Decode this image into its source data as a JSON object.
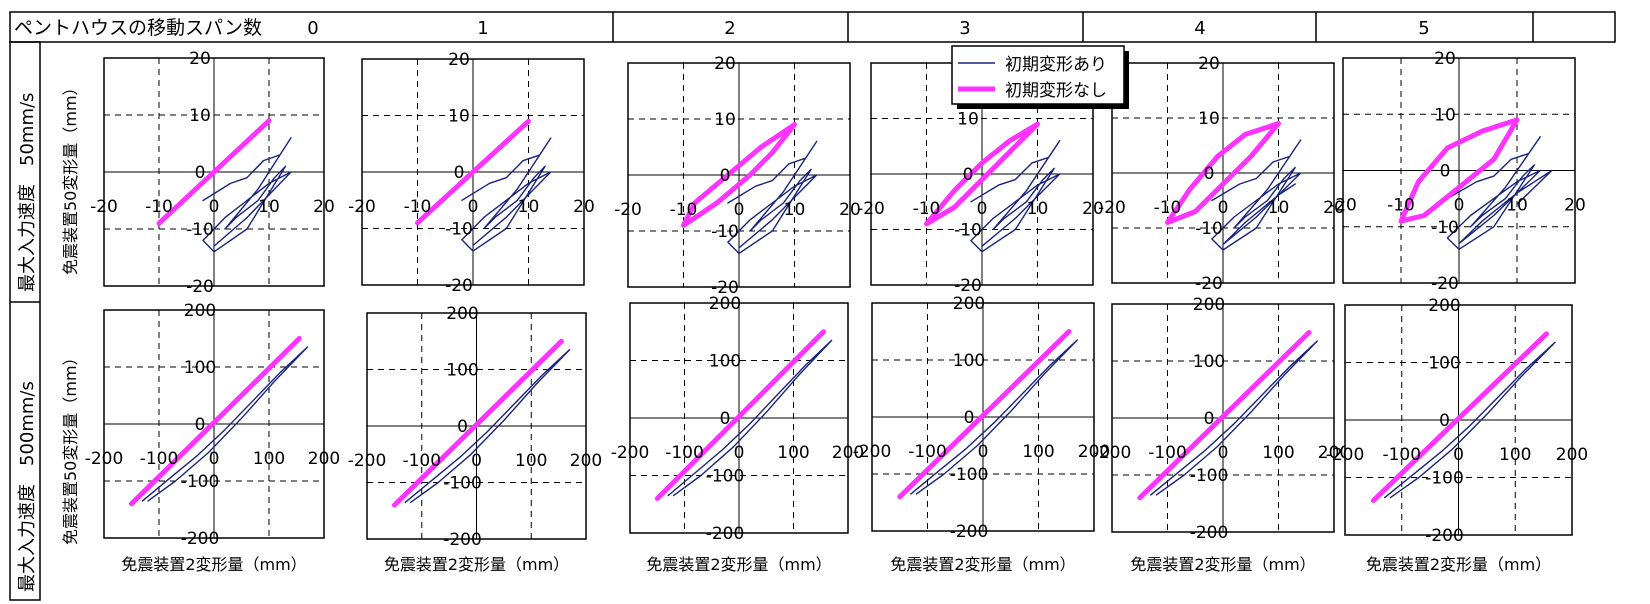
{
  "header": {
    "label": "ペントハウスの移動スパン数",
    "columns": [
      "0",
      "1",
      "2",
      "3",
      "4",
      "5"
    ]
  },
  "row_labels": [
    "最大入力速度　50mm/s",
    "最大入力速度　500mm/s"
  ],
  "y_axis_label": "免震装置50変形量（mm）",
  "x_axis_label": "免震装置2変形量（mm）",
  "legend": {
    "items": [
      {
        "label": "初期変形あり",
        "color": "#1a237e"
      },
      {
        "label": "初期変形なし",
        "color": "#ff33ff"
      }
    ]
  },
  "colors": {
    "series_with_initial": "#1a237e",
    "series_without_initial": "#ff33ff",
    "grid": "#000000"
  },
  "chart_data": [
    {
      "type": "line",
      "row": "最大入力速度　50mm/s",
      "column": "0",
      "xlim": [
        -20,
        20
      ],
      "ylim": [
        -20,
        20
      ],
      "xticks": [
        -20,
        -10,
        0,
        10,
        20
      ],
      "yticks": [
        -20,
        -10,
        0,
        10,
        20
      ],
      "series": [
        {
          "name": "初期変形あり",
          "x": [
            -2,
            3,
            6,
            9,
            12,
            14,
            8,
            2,
            4,
            8,
            11,
            13,
            6,
            0,
            -2,
            2,
            6,
            10,
            14,
            6,
            0
          ],
          "y": [
            -5,
            -2,
            -1,
            2,
            3,
            6,
            -3,
            -10,
            -8,
            -5,
            -1,
            1,
            -10,
            -14,
            -12,
            -8,
            -5,
            -2,
            0,
            -8,
            -13
          ]
        },
        {
          "name": "初期変形なし",
          "x": [
            -10,
            10
          ],
          "y": [
            -9,
            9
          ]
        }
      ]
    },
    {
      "type": "line",
      "row": "最大入力速度　50mm/s",
      "column": "1",
      "xlim": [
        -20,
        20
      ],
      "ylim": [
        -20,
        20
      ],
      "xticks": [
        -20,
        -10,
        0,
        10,
        20
      ],
      "yticks": [
        -20,
        -10,
        0,
        10,
        20
      ],
      "series": [
        {
          "name": "初期変形あり",
          "x": [
            -2,
            3,
            6,
            9,
            12,
            14,
            8,
            2,
            4,
            8,
            11,
            13,
            6,
            0,
            -2,
            2,
            6,
            10,
            14,
            6,
            0
          ],
          "y": [
            -5,
            -2,
            -1,
            2,
            3,
            6,
            -3,
            -10,
            -8,
            -5,
            -1,
            1,
            -10,
            -14,
            -12,
            -8,
            -5,
            -2,
            0,
            -8,
            -13
          ]
        },
        {
          "name": "初期変形なし",
          "x": [
            -10,
            10
          ],
          "y": [
            -9,
            9
          ]
        }
      ]
    },
    {
      "type": "line",
      "row": "最大入力速度　50mm/s",
      "column": "2",
      "xlim": [
        -20,
        20
      ],
      "ylim": [
        -20,
        20
      ],
      "xticks": [
        -20,
        -10,
        0,
        10,
        20
      ],
      "yticks": [
        -20,
        -10,
        0,
        10,
        20
      ],
      "series": [
        {
          "name": "初期変形あり",
          "x": [
            -2,
            3,
            6,
            9,
            12,
            14,
            8,
            2,
            4,
            8,
            11,
            13,
            6,
            0,
            -2,
            2,
            6,
            10,
            14,
            6,
            0
          ],
          "y": [
            -5,
            -2,
            -1,
            2,
            3,
            6,
            -3,
            -10,
            -8,
            -5,
            -1,
            1,
            -10,
            -14,
            -12,
            -8,
            -5,
            -2,
            0,
            -8,
            -13
          ]
        },
        {
          "name": "初期変形なし",
          "x": [
            -10,
            -4,
            2,
            6,
            10,
            4,
            -2,
            -8,
            -10
          ],
          "y": [
            -9,
            -5,
            0,
            4,
            9,
            5,
            0,
            -5,
            -9
          ]
        }
      ]
    },
    {
      "type": "line",
      "row": "最大入力速度　50mm/s",
      "column": "3",
      "xlim": [
        -20,
        20
      ],
      "ylim": [
        -20,
        20
      ],
      "xticks": [
        -20,
        -10,
        0,
        10,
        20
      ],
      "yticks": [
        -20,
        -10,
        0,
        10,
        20
      ],
      "series": [
        {
          "name": "初期変形あり",
          "x": [
            -2,
            3,
            6,
            9,
            12,
            14,
            8,
            2,
            4,
            8,
            11,
            13,
            6,
            0,
            -2,
            2,
            6,
            10,
            14,
            6,
            0
          ],
          "y": [
            -5,
            -2,
            -1,
            2,
            3,
            6,
            -3,
            -10,
            -8,
            -5,
            -1,
            1,
            -10,
            -14,
            -12,
            -8,
            -5,
            -2,
            0,
            -8,
            -13
          ]
        },
        {
          "name": "初期変形なし",
          "x": [
            -10,
            -5,
            0,
            5,
            10,
            5,
            0,
            -5,
            -10
          ],
          "y": [
            -9,
            -3,
            2,
            6,
            9,
            4,
            -1,
            -6,
            -9
          ]
        }
      ]
    },
    {
      "type": "line",
      "row": "最大入力速度　50mm/s",
      "column": "4",
      "xlim": [
        -20,
        20
      ],
      "ylim": [
        -20,
        20
      ],
      "xticks": [
        -20,
        -10,
        0,
        10,
        20
      ],
      "yticks": [
        -20,
        -10,
        0,
        10,
        20
      ],
      "series": [
        {
          "name": "初期変形あり",
          "x": [
            -2,
            3,
            6,
            9,
            12,
            14,
            8,
            2,
            4,
            8,
            11,
            13,
            6,
            0,
            -2,
            2,
            6,
            10,
            14,
            6,
            0,
            4,
            10,
            13
          ],
          "y": [
            -5,
            -2,
            -1,
            2,
            3,
            6,
            -3,
            -10,
            -8,
            -5,
            -1,
            1,
            -10,
            -14,
            -12,
            -8,
            -5,
            -2,
            0,
            -8,
            -13,
            -9,
            -4,
            -2
          ]
        },
        {
          "name": "初期変形なし",
          "x": [
            -10,
            -6,
            -1,
            4,
            10,
            5,
            0,
            -5,
            -10
          ],
          "y": [
            -9,
            -3,
            3,
            7,
            9,
            3,
            -2,
            -7,
            -9
          ]
        }
      ]
    },
    {
      "type": "line",
      "row": "最大入力速度　50mm/s",
      "column": "5",
      "xlim": [
        -20,
        20
      ],
      "ylim": [
        -20,
        20
      ],
      "xticks": [
        -20,
        -10,
        0,
        10,
        20
      ],
      "yticks": [
        -20,
        -10,
        0,
        10,
        20
      ],
      "series": [
        {
          "name": "初期変形あり",
          "x": [
            -2,
            3,
            6,
            9,
            12,
            14,
            8,
            2,
            4,
            8,
            11,
            13,
            6,
            0,
            -2,
            2,
            6,
            10,
            14,
            6,
            0,
            4,
            10,
            13,
            16,
            10
          ],
          "y": [
            -5,
            -2,
            -1,
            2,
            3,
            6,
            -3,
            -10,
            -8,
            -5,
            -1,
            1,
            -10,
            -14,
            -12,
            -8,
            -5,
            -2,
            0,
            -8,
            -13,
            -9,
            -4,
            -2,
            0,
            -6
          ]
        },
        {
          "name": "初期変形なし",
          "x": [
            -10,
            -7,
            -2,
            4,
            10,
            6,
            0,
            -6,
            -10
          ],
          "y": [
            -9,
            -2,
            4,
            7,
            9,
            2,
            -3,
            -8,
            -9
          ]
        }
      ]
    },
    {
      "type": "line",
      "row": "最大入力速度　500mm/s",
      "column": "0",
      "xlim": [
        -200,
        200
      ],
      "ylim": [
        -200,
        200
      ],
      "xticks": [
        -200,
        -100,
        0,
        100,
        200
      ],
      "yticks": [
        -200,
        -100,
        0,
        100,
        200
      ],
      "series": [
        {
          "name": "初期変形あり",
          "x": [
            -130,
            -80,
            -30,
            20,
            70,
            120,
            170,
            110,
            50,
            -10,
            -70,
            -120
          ],
          "y": [
            -135,
            -95,
            -55,
            -10,
            40,
            90,
            135,
            75,
            10,
            -50,
            -100,
            -135
          ]
        },
        {
          "name": "初期変形なし",
          "x": [
            -150,
            155
          ],
          "y": [
            -140,
            150
          ]
        }
      ]
    },
    {
      "type": "line",
      "row": "最大入力速度　500mm/s",
      "column": "1",
      "xlim": [
        -200,
        200
      ],
      "ylim": [
        -200,
        200
      ],
      "xticks": [
        -200,
        -100,
        0,
        100,
        200
      ],
      "yticks": [
        -200,
        -100,
        0,
        100,
        200
      ],
      "series": [
        {
          "name": "初期変形あり",
          "x": [
            -130,
            -80,
            -30,
            20,
            70,
            120,
            170,
            110,
            50,
            -10,
            -70,
            -120
          ],
          "y": [
            -135,
            -95,
            -55,
            -10,
            40,
            90,
            135,
            75,
            10,
            -50,
            -100,
            -135
          ]
        },
        {
          "name": "初期変形なし",
          "x": [
            -150,
            155
          ],
          "y": [
            -140,
            150
          ]
        }
      ]
    },
    {
      "type": "line",
      "row": "最大入力速度　500mm/s",
      "column": "2",
      "xlim": [
        -200,
        200
      ],
      "ylim": [
        -200,
        200
      ],
      "xticks": [
        -200,
        -100,
        0,
        100,
        200
      ],
      "yticks": [
        -200,
        -100,
        0,
        100,
        200
      ],
      "series": [
        {
          "name": "初期変形あり",
          "x": [
            -130,
            -80,
            -30,
            20,
            70,
            120,
            170,
            110,
            50,
            -10,
            -70,
            -120
          ],
          "y": [
            -135,
            -95,
            -55,
            -10,
            40,
            90,
            135,
            75,
            10,
            -50,
            -100,
            -135
          ]
        },
        {
          "name": "初期変形なし",
          "x": [
            -150,
            155
          ],
          "y": [
            -140,
            150
          ]
        }
      ]
    },
    {
      "type": "line",
      "row": "最大入力速度　500mm/s",
      "column": "3",
      "xlim": [
        -200,
        200
      ],
      "ylim": [
        -200,
        200
      ],
      "xticks": [
        -200,
        -100,
        0,
        100,
        200
      ],
      "yticks": [
        -200,
        -100,
        0,
        100,
        200
      ],
      "series": [
        {
          "name": "初期変形あり",
          "x": [
            -130,
            -80,
            -30,
            20,
            70,
            120,
            170,
            110,
            50,
            -10,
            -70,
            -120
          ],
          "y": [
            -135,
            -95,
            -55,
            -10,
            40,
            90,
            135,
            75,
            10,
            -50,
            -100,
            -135
          ]
        },
        {
          "name": "初期変形なし",
          "x": [
            -150,
            155
          ],
          "y": [
            -140,
            150
          ]
        }
      ]
    },
    {
      "type": "line",
      "row": "最大入力速度　500mm/s",
      "column": "4",
      "xlim": [
        -200,
        200
      ],
      "ylim": [
        -200,
        200
      ],
      "xticks": [
        -200,
        -100,
        0,
        100,
        200
      ],
      "yticks": [
        -200,
        -100,
        0,
        100,
        200
      ],
      "series": [
        {
          "name": "初期変形あり",
          "x": [
            -130,
            -80,
            -30,
            20,
            70,
            120,
            170,
            110,
            50,
            -10,
            -70,
            -120
          ],
          "y": [
            -135,
            -95,
            -55,
            -10,
            40,
            90,
            135,
            75,
            10,
            -50,
            -100,
            -135
          ]
        },
        {
          "name": "初期変形なし",
          "x": [
            -150,
            155
          ],
          "y": [
            -140,
            150
          ]
        }
      ]
    },
    {
      "type": "line",
      "row": "最大入力速度　500mm/s",
      "column": "5",
      "xlim": [
        -200,
        200
      ],
      "ylim": [
        -200,
        200
      ],
      "xticks": [
        -200,
        -100,
        0,
        100,
        200
      ],
      "yticks": [
        -200,
        -100,
        0,
        100,
        200
      ],
      "series": [
        {
          "name": "初期変形あり",
          "x": [
            -130,
            -80,
            -30,
            20,
            70,
            120,
            170,
            110,
            50,
            -10,
            -70,
            -120
          ],
          "y": [
            -135,
            -95,
            -55,
            -10,
            40,
            90,
            135,
            75,
            10,
            -50,
            -100,
            -135
          ]
        },
        {
          "name": "初期変形なし",
          "x": [
            -150,
            155
          ],
          "y": [
            -140,
            150
          ]
        }
      ]
    }
  ]
}
